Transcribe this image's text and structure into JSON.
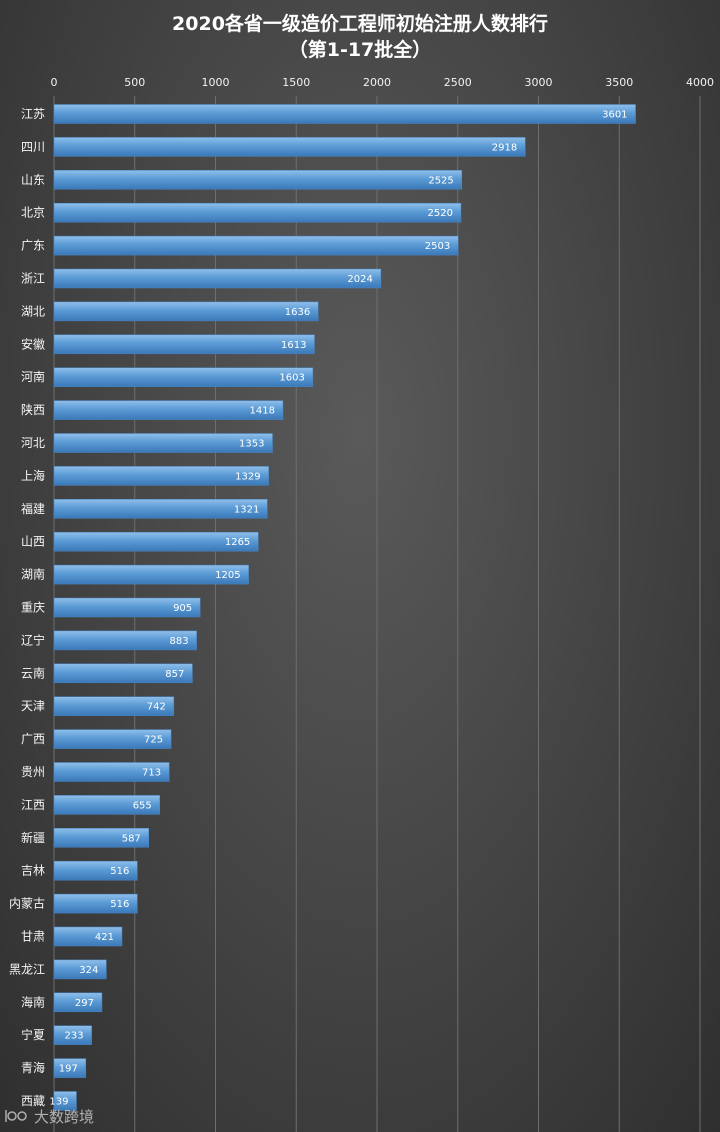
{
  "chart_data": {
    "type": "bar",
    "orientation": "horizontal",
    "title": "2020各省一级造价工程师初始注册人数排行",
    "subtitle": "（第1-17批全）",
    "xlabel": "",
    "ylabel": "",
    "xlim": [
      0,
      4000
    ],
    "x_ticks": [
      0,
      500,
      1000,
      1500,
      2000,
      2500,
      3000,
      3500,
      4000
    ],
    "x_axis_position": "top",
    "grid": true,
    "legend": "none",
    "bar_color": "#5b9bd5",
    "categories": [
      "江苏",
      "四川",
      "山东",
      "北京",
      "广东",
      "浙江",
      "湖北",
      "安徽",
      "河南",
      "陕西",
      "河北",
      "上海",
      "福建",
      "山西",
      "湖南",
      "重庆",
      "辽宁",
      "云南",
      "天津",
      "广西",
      "贵州",
      "江西",
      "新疆",
      "吉林",
      "内蒙古",
      "甘肃",
      "黑龙江",
      "海南",
      "宁夏",
      "青海",
      "西藏"
    ],
    "values": [
      3601,
      2918,
      2525,
      2520,
      2503,
      2024,
      1636,
      1613,
      1603,
      1418,
      1353,
      1329,
      1321,
      1265,
      1205,
      905,
      883,
      857,
      742,
      725,
      713,
      655,
      587,
      516,
      516,
      421,
      324,
      297,
      233,
      197,
      139
    ]
  },
  "watermark": {
    "icon": "logo-icon",
    "text": "大数跨境"
  }
}
